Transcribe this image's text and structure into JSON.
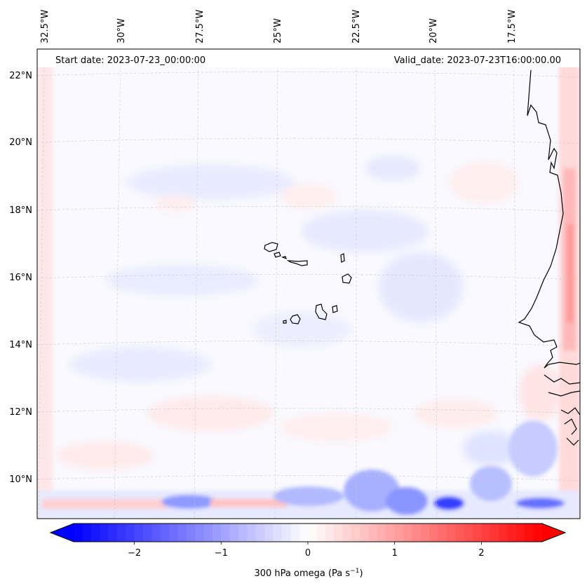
{
  "annotations": {
    "start_date": "Start date: 2023-07-23_00:00:00",
    "valid_date": "Valid_date: 2023-07-23T16:00:00.00"
  },
  "map": {
    "lon_labels": [
      "32.5°W",
      "30°W",
      "27.5°W",
      "25°W",
      "22.5°W",
      "20°W",
      "17.5°W"
    ],
    "lat_labels": [
      "22°N",
      "20°N",
      "18°N",
      "16°N",
      "14°N",
      "12°N",
      "10°N"
    ],
    "gridlines": true,
    "coastline_color": "#000000"
  },
  "colorbar": {
    "label_main": "300 hPa omega (Pa s",
    "label_exp": "−1",
    "label_close": ")",
    "ticks": [
      "−2",
      "−1",
      "0",
      "1",
      "2"
    ],
    "tick_values": [
      -2,
      -1,
      0,
      1,
      2
    ],
    "vmin": -2.7,
    "vmax": 2.7,
    "extend": "both",
    "colormap": "bwr",
    "color_min": "#0000ff",
    "color_mid": "#ffffff",
    "color_max": "#ff0000"
  }
}
